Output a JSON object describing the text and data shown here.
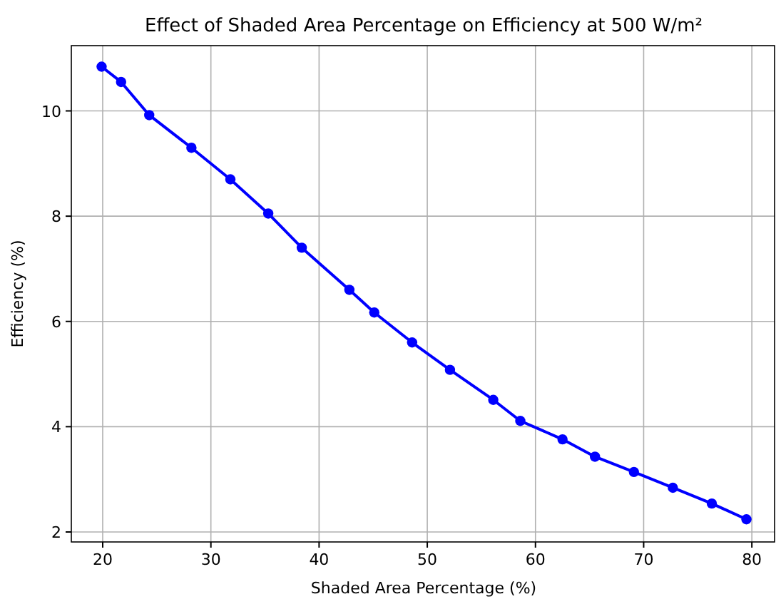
{
  "chart_data": {
    "type": "line",
    "title": "Effect of Shaded Area Percentage on Efficiency at 500 W/m²",
    "xlabel": "Shaded Area Percentage (%)",
    "ylabel": "Efficiency (%)",
    "x": [
      19.9,
      21.7,
      24.3,
      28.2,
      31.8,
      35.3,
      38.4,
      42.8,
      45.1,
      48.6,
      52.1,
      56.1,
      58.6,
      62.5,
      65.5,
      69.1,
      72.7,
      76.3,
      79.5
    ],
    "series": [
      {
        "color": "#0000ff",
        "values": [
          10.84,
          10.55,
          9.92,
          9.3,
          8.7,
          8.05,
          7.4,
          6.6,
          6.17,
          5.6,
          5.08,
          4.51,
          4.11,
          3.76,
          3.43,
          3.14,
          2.84,
          2.54,
          2.24
        ]
      }
    ],
    "xlim": [
      17.1,
      82.1
    ],
    "ylim": [
      1.81,
      11.24
    ],
    "xticks": [
      20,
      30,
      40,
      50,
      60,
      70,
      80
    ],
    "yticks": [
      2,
      4,
      6,
      8,
      10
    ],
    "grid": true,
    "marker": "circle",
    "line_style": "solid"
  }
}
